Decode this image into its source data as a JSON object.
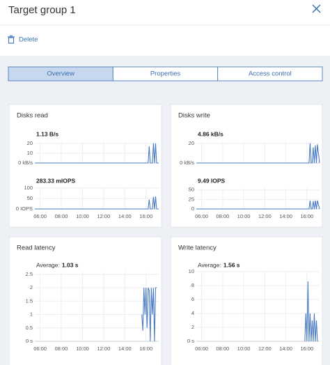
{
  "header": {
    "title": "Target group 1"
  },
  "toolbar": {
    "delete": "Delete"
  },
  "tabs": [
    {
      "label": "Overview",
      "active": true
    },
    {
      "label": "Properties",
      "active": false
    },
    {
      "label": "Access control",
      "active": false
    }
  ],
  "panels": [
    {
      "title": "Disks read",
      "charts": [
        {
          "type": "line",
          "title": "1.13 B/s",
          "grid": true,
          "xlim": [
            5.5,
            17.2
          ],
          "ylim": [
            0,
            22
          ],
          "xticks": [
            {
              "value": 6,
              "label": "06:00"
            },
            {
              "value": 8,
              "label": "08:00"
            },
            {
              "value": 10,
              "label": "10:00"
            },
            {
              "value": 12,
              "label": "12:00"
            },
            {
              "value": 14,
              "label": "14:00"
            },
            {
              "value": 16,
              "label": "16:00"
            }
          ],
          "yticks": [
            {
              "value": 0,
              "label": "0 kB/s"
            },
            10,
            20
          ],
          "x": [
            5.5,
            16.2,
            16.3,
            16.4,
            16.5,
            16.6,
            16.7,
            16.8,
            16.9,
            17.0,
            17.2
          ],
          "series": [
            {
              "color": "#4a7bc4",
              "values": [
                0,
                0,
                17,
                0,
                0,
                0,
                20,
                0,
                20,
                0,
                0
              ]
            }
          ]
        },
        {
          "type": "line",
          "title": "283.33 mIOPS",
          "grid": true,
          "xlim": [
            5.5,
            17.2
          ],
          "ylim": [
            0,
            100
          ],
          "xticks": [
            {
              "value": 6,
              "label": "06:00"
            },
            {
              "value": 8,
              "label": "08:00"
            },
            {
              "value": 10,
              "label": "10:00"
            },
            {
              "value": 12,
              "label": "12:00"
            },
            {
              "value": 14,
              "label": "14:00"
            },
            {
              "value": 16,
              "label": "16:00"
            }
          ],
          "yticks": [
            {
              "value": 0,
              "label": "0 IOPS"
            },
            50,
            100
          ],
          "x": [
            5.5,
            16.2,
            16.3,
            16.4,
            16.5,
            16.6,
            16.7,
            16.8,
            16.9,
            17.0,
            17.2
          ],
          "series": [
            {
              "color": "#4a7bc4",
              "values": [
                0,
                0,
                45,
                0,
                0,
                0,
                58,
                0,
                60,
                0,
                0
              ]
            }
          ]
        }
      ]
    },
    {
      "title": "Disks write",
      "charts": [
        {
          "type": "line",
          "title": "4.86 kB/s",
          "grid": true,
          "xlim": [
            5.5,
            17.2
          ],
          "ylim": [
            0,
            22
          ],
          "xticks": [
            {
              "value": 6,
              "label": "06:00"
            },
            {
              "value": 8,
              "label": "08:00"
            },
            {
              "value": 10,
              "label": "10:00"
            },
            {
              "value": 12,
              "label": "12:00"
            },
            {
              "value": 14,
              "label": "14:00"
            },
            {
              "value": 16,
              "label": "16:00"
            }
          ],
          "yticks": [
            {
              "value": 0,
              "label": "0 kB/s"
            },
            20
          ],
          "x": [
            5.5,
            16.2,
            16.3,
            16.4,
            16.5,
            16.6,
            16.7,
            16.8,
            16.9,
            17.0,
            17.2
          ],
          "series": [
            {
              "color": "#4a7bc4",
              "values": [
                0,
                0,
                20,
                0,
                0,
                16,
                0,
                18,
                0,
                19,
                0
              ]
            }
          ]
        },
        {
          "type": "line",
          "title": "9.49 IOPS",
          "grid": true,
          "xlim": [
            5.5,
            17.2
          ],
          "ylim": [
            0,
            55
          ],
          "xticks": [
            {
              "value": 6,
              "label": "06:00"
            },
            {
              "value": 8,
              "label": "08:00"
            },
            {
              "value": 10,
              "label": "10:00"
            },
            {
              "value": 12,
              "label": "12:00"
            },
            {
              "value": 14,
              "label": "14:00"
            },
            {
              "value": 16,
              "label": "16:00"
            }
          ],
          "yticks": [
            0,
            25,
            50
          ],
          "x": [
            5.5,
            16.2,
            16.3,
            16.4,
            16.5,
            16.6,
            16.7,
            16.8,
            16.9,
            17.0,
            17.2
          ],
          "series": [
            {
              "color": "#4a7bc4",
              "values": [
                0,
                0,
                22,
                0,
                0,
                21,
                0,
                22,
                0,
                22,
                0
              ]
            }
          ]
        }
      ]
    },
    {
      "title": "Read latency",
      "charts": [
        {
          "type": "line",
          "average_label": "Average:",
          "average_value": "1.03 s",
          "grid": true,
          "xlim": [
            5.5,
            17.2
          ],
          "ylim": [
            0,
            2.6
          ],
          "xticks": [
            {
              "value": 6,
              "label": "06:00"
            },
            {
              "value": 8,
              "label": "08:00"
            },
            {
              "value": 10,
              "label": "10:00"
            },
            {
              "value": 12,
              "label": "12:00"
            },
            {
              "value": 14,
              "label": "14:00"
            },
            {
              "value": 16,
              "label": "16:00"
            }
          ],
          "yticks": [
            {
              "value": 0,
              "label": "0 s"
            },
            0.5,
            1,
            1.5,
            2,
            2.5
          ],
          "x": [
            15.6,
            15.7,
            15.8,
            15.9,
            16.0,
            16.1,
            16.2,
            16.3,
            16.4,
            16.5,
            16.6,
            16.7,
            16.8,
            16.9,
            17.0
          ],
          "series": [
            {
              "color": "#4a7bc4",
              "values": [
                1.0,
                0.4,
                2.0,
                1.0,
                2.0,
                0.5,
                2.0,
                1.9,
                0.0,
                2.0,
                1.0,
                2.0,
                0.0,
                2.0,
                2.0
              ]
            }
          ]
        }
      ]
    },
    {
      "title": "Write latency",
      "charts": [
        {
          "type": "line",
          "average_label": "Average:",
          "average_value": "1.56 s",
          "grid": true,
          "xlim": [
            5.5,
            17.2
          ],
          "ylim": [
            0,
            10
          ],
          "xticks": [
            {
              "value": 6,
              "label": "06:00"
            },
            {
              "value": 8,
              "label": "08:00"
            },
            {
              "value": 10,
              "label": "10:00"
            },
            {
              "value": 12,
              "label": "12:00"
            },
            {
              "value": 14,
              "label": "14:00"
            },
            {
              "value": 16,
              "label": "16:00"
            }
          ],
          "yticks": [
            {
              "value": 0,
              "label": "0 s"
            },
            2,
            4,
            6,
            8,
            10
          ],
          "x": [
            15.8,
            15.9,
            16.0,
            16.1,
            16.2,
            16.3,
            16.4,
            16.5,
            16.6,
            16.7,
            16.8,
            16.9,
            17.0
          ],
          "series": [
            {
              "color": "#4a7bc4",
              "values": [
                0,
                4,
                0,
                8.6,
                0,
                4,
                0,
                3,
                0,
                4,
                0,
                3,
                0
              ]
            }
          ]
        }
      ]
    }
  ]
}
